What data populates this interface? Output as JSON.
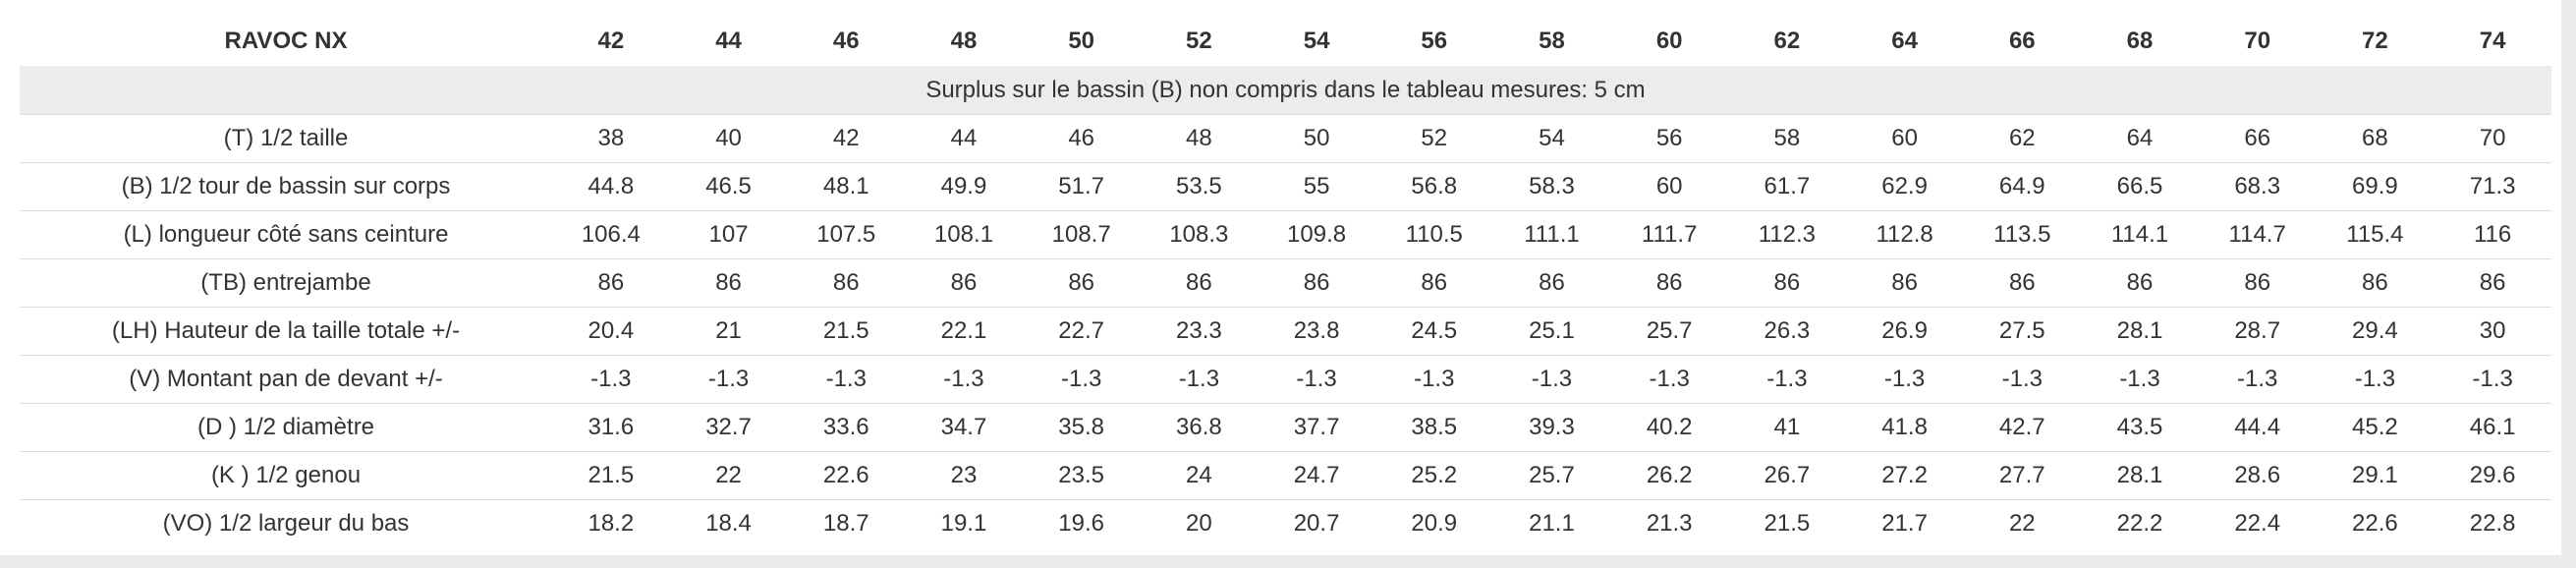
{
  "table": {
    "title": "RAVOC NX",
    "sizes": [
      "42",
      "44",
      "46",
      "48",
      "50",
      "52",
      "54",
      "56",
      "58",
      "60",
      "62",
      "64",
      "66",
      "68",
      "70",
      "72",
      "74"
    ],
    "note": "Surplus sur le bassin (B) non compris dans le tableau mesures: 5 cm",
    "rows": [
      {
        "label": "(T) 1/2 taille",
        "values": [
          "38",
          "40",
          "42",
          "44",
          "46",
          "48",
          "50",
          "52",
          "54",
          "56",
          "58",
          "60",
          "62",
          "64",
          "66",
          "68",
          "70"
        ]
      },
      {
        "label": "(B) 1/2 tour de bassin sur corps",
        "values": [
          "44.8",
          "46.5",
          "48.1",
          "49.9",
          "51.7",
          "53.5",
          "55",
          "56.8",
          "58.3",
          "60",
          "61.7",
          "62.9",
          "64.9",
          "66.5",
          "68.3",
          "69.9",
          "71.3"
        ]
      },
      {
        "label": "(L) longueur côté sans ceinture",
        "values": [
          "106.4",
          "107",
          "107.5",
          "108.1",
          "108.7",
          "108.3",
          "109.8",
          "110.5",
          "111.1",
          "111.7",
          "112.3",
          "112.8",
          "113.5",
          "114.1",
          "114.7",
          "115.4",
          "116"
        ]
      },
      {
        "label": "(TB) entrejambe",
        "values": [
          "86",
          "86",
          "86",
          "86",
          "86",
          "86",
          "86",
          "86",
          "86",
          "86",
          "86",
          "86",
          "86",
          "86",
          "86",
          "86",
          "86"
        ]
      },
      {
        "label": "(LH) Hauteur de la taille totale +/-",
        "values": [
          "20.4",
          "21",
          "21.5",
          "22.1",
          "22.7",
          "23.3",
          "23.8",
          "24.5",
          "25.1",
          "25.7",
          "26.3",
          "26.9",
          "27.5",
          "28.1",
          "28.7",
          "29.4",
          "30"
        ]
      },
      {
        "label": "(V) Montant pan de devant +/-",
        "values": [
          "-1.3",
          "-1.3",
          "-1.3",
          "-1.3",
          "-1.3",
          "-1.3",
          "-1.3",
          "-1.3",
          "-1.3",
          "-1.3",
          "-1.3",
          "-1.3",
          "-1.3",
          "-1.3",
          "-1.3",
          "-1.3",
          "-1.3"
        ]
      },
      {
        "label": "(D ) 1/2 diamètre",
        "values": [
          "31.6",
          "32.7",
          "33.6",
          "34.7",
          "35.8",
          "36.8",
          "37.7",
          "38.5",
          "39.3",
          "40.2",
          "41",
          "41.8",
          "42.7",
          "43.5",
          "44.4",
          "45.2",
          "46.1"
        ]
      },
      {
        "label": "(K ) 1/2 genou",
        "values": [
          "21.5",
          "22",
          "22.6",
          "23",
          "23.5",
          "24",
          "24.7",
          "25.2",
          "25.7",
          "26.2",
          "26.7",
          "27.2",
          "27.7",
          "28.1",
          "28.6",
          "29.1",
          "29.6"
        ]
      },
      {
        "label": "(VO) 1/2 largeur du bas",
        "values": [
          "18.2",
          "18.4",
          "18.7",
          "19.1",
          "19.6",
          "20",
          "20.7",
          "20.9",
          "21.1",
          "21.3",
          "21.5",
          "21.7",
          "22",
          "22.2",
          "22.4",
          "22.6",
          "22.8"
        ]
      }
    ]
  }
}
